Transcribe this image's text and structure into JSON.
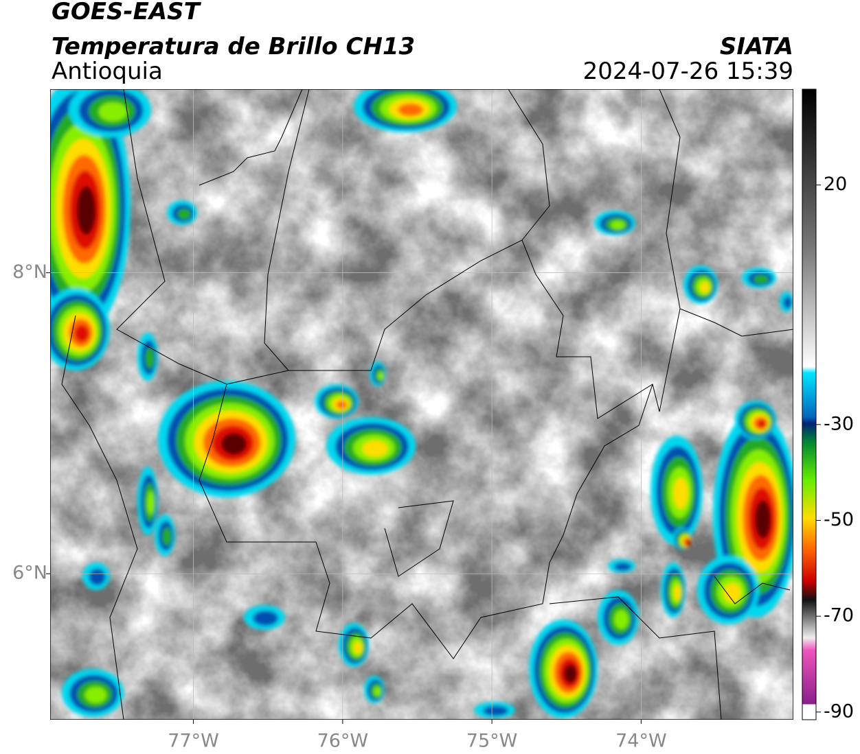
{
  "header": {
    "title": "GOES-EAST",
    "subtitle": "Temperatura de Brillo CH13",
    "region": "Antioquia",
    "source": "SIATA",
    "datetime": "2024-07-26 15:39"
  },
  "map": {
    "lon_range": [
      -77.96,
      -72.98
    ],
    "lat_range": [
      5.03,
      9.22
    ],
    "lon_ticks": [
      {
        "value": -77,
        "label": "77°W"
      },
      {
        "value": -76,
        "label": "76°W"
      },
      {
        "value": -75,
        "label": "75°W"
      },
      {
        "value": -74,
        "label": "74°W"
      }
    ],
    "lat_ticks": [
      {
        "value": 8,
        "label": "8°N"
      },
      {
        "value": 6,
        "label": "6°N"
      }
    ]
  },
  "colorbar": {
    "range": [
      -91.6,
      40
    ],
    "ticks": [
      20,
      -30,
      -50,
      -70,
      -90
    ]
  }
}
